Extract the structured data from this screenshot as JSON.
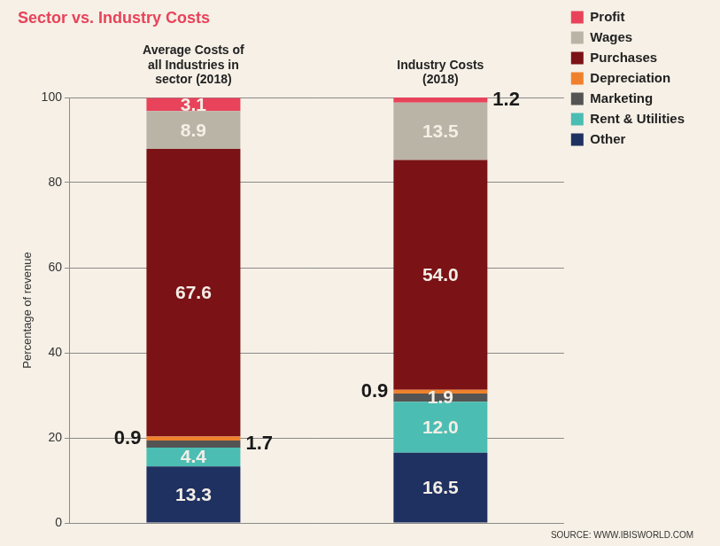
{
  "chart_data": {
    "type": "bar",
    "title": "Sector vs. Industry Costs",
    "source": "SOURCE: WWW.IBISWORLD.COM",
    "y_label": "Percentage of revenue",
    "categories": [
      "Average Costs of all Industries in sector (2018)",
      "Industry Costs (2018)"
    ],
    "series": [
      {
        "name": "Other",
        "color": "#1f3160",
        "values": [
          13.3,
          16.5
        ],
        "value_labels": [
          "13.3",
          "16.5"
        ]
      },
      {
        "name": "Rent & Utilities",
        "color": "#4cbdb3",
        "values": [
          4.4,
          12.0
        ],
        "value_labels": [
          "4.4",
          "12.0"
        ]
      },
      {
        "name": "Marketing",
        "color": "#545454",
        "values": [
          1.7,
          1.9
        ],
        "value_labels": [
          "1.7",
          "1.9"
        ]
      },
      {
        "name": "Depreciation",
        "color": "#f0812c",
        "values": [
          0.9,
          0.9
        ],
        "value_labels": [
          "0.9",
          "0.9"
        ]
      },
      {
        "name": "Purchases",
        "color": "#7b1216",
        "values": [
          67.6,
          54.0
        ],
        "value_labels": [
          "67.6",
          "54.0"
        ]
      },
      {
        "name": "Wages",
        "color": "#bab4a6",
        "values": [
          8.9,
          13.5
        ],
        "value_labels": [
          "8.9",
          "13.5"
        ]
      },
      {
        "name": "Profit",
        "color": "#e8435a",
        "values": [
          3.1,
          1.2
        ],
        "value_labels": [
          "3.1",
          "1.2"
        ]
      }
    ],
    "ylim": [
      0,
      100
    ],
    "yticks": [
      0,
      20,
      40,
      60,
      80,
      100
    ],
    "stacked": true,
    "grid": true,
    "legend": "upper right",
    "data_labels": true
  }
}
